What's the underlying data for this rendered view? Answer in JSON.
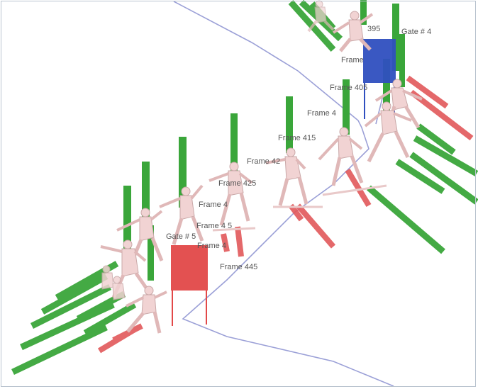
{
  "colors": {
    "background": "#ffffff",
    "green_pole": "#3aa63a",
    "red_pole": "#e2585a",
    "blue_gate": "#2f4fbf",
    "red_gate": "#e24848",
    "course_line": "#8a8fd0",
    "skier": "#f1d3d3"
  },
  "labels": {
    "gate_4": "Gate # 4",
    "gate_5": "Gate # 5",
    "frame_395": "395",
    "frame_4a": "Frame",
    "frame_405": "Frame 405",
    "frame_41": "Frame 4",
    "frame_415": "Frame 415",
    "frame_42": "Frame 42",
    "frame_425": "Frame 425",
    "frame_43": "Frame 4",
    "frame_435": "Frame 4  5",
    "frame_44": "Frame 4",
    "frame_445": "Frame 445"
  }
}
